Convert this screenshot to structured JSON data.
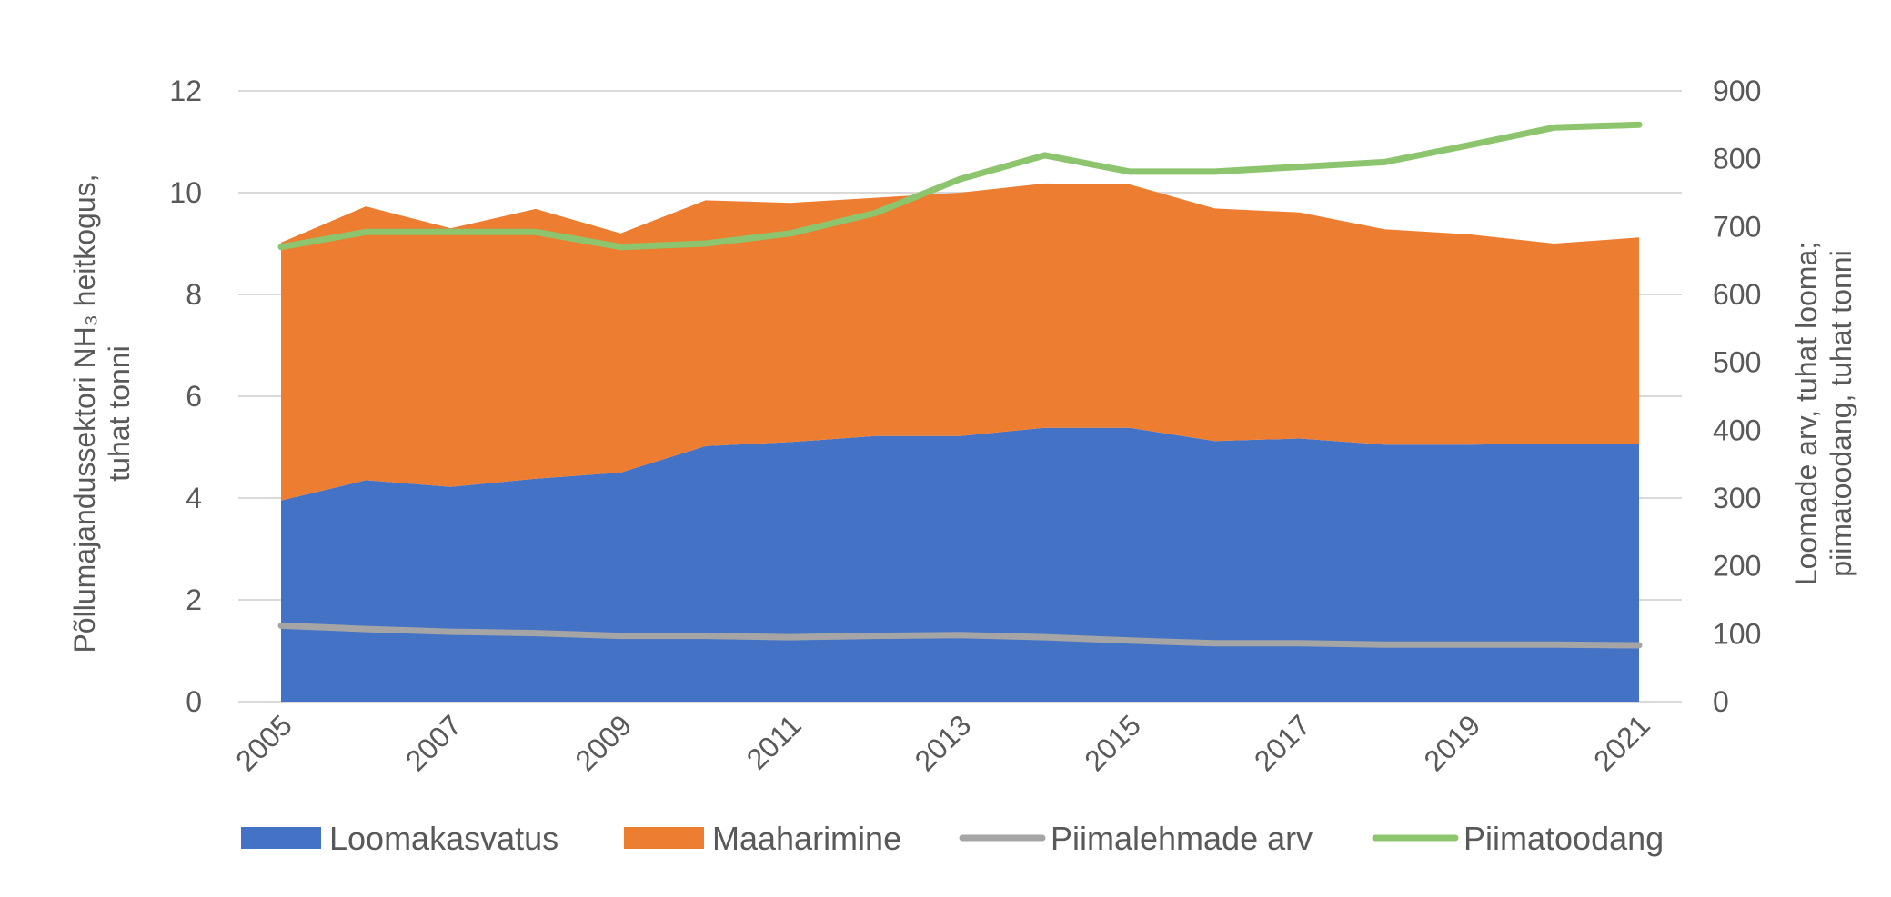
{
  "chart_data": {
    "type": "area",
    "x": [
      2005,
      2006,
      2007,
      2008,
      2009,
      2010,
      2011,
      2012,
      2013,
      2014,
      2015,
      2016,
      2017,
      2018,
      2019,
      2020,
      2021
    ],
    "x_tick_labels": [
      "2005",
      "2007",
      "2009",
      "2011",
      "2013",
      "2015",
      "2017",
      "2019",
      "2021"
    ],
    "ylabel_left": "Põllumajandussektori NH₃ heitkogus, tuhat tonni",
    "ylabel_right": "Loomade arv, tuhat looma; piimatoodang, tuhat tonni",
    "ylim_left": [
      0,
      12
    ],
    "ylim_right": [
      0,
      900
    ],
    "y_ticks_left": [
      0,
      2,
      4,
      6,
      8,
      10,
      12
    ],
    "y_ticks_right": [
      0,
      100,
      200,
      300,
      400,
      500,
      600,
      700,
      800,
      900
    ],
    "grid": true,
    "legend_position": "bottom",
    "stacked": true,
    "series": [
      {
        "name": "Loomakasvatus",
        "type": "area",
        "axis": "left",
        "color": "#4472C4",
        "values": [
          3.95,
          4.35,
          4.22,
          4.38,
          4.5,
          5.02,
          5.1,
          5.22,
          5.22,
          5.38,
          5.38,
          5.12,
          5.17,
          5.05,
          5.05,
          5.07,
          5.07
        ]
      },
      {
        "name": "Maaharimine",
        "type": "area",
        "axis": "left",
        "color": "#ED7D31",
        "values": [
          5.07,
          5.38,
          5.08,
          5.3,
          4.7,
          4.83,
          4.7,
          4.68,
          4.78,
          4.8,
          4.78,
          4.57,
          4.44,
          4.23,
          4.13,
          3.93,
          4.05
        ]
      },
      {
        "name": "Piimalehmade arv",
        "type": "line",
        "axis": "right",
        "color": "#A5A5A5",
        "values": [
          112,
          107,
          103,
          101,
          97,
          97,
          95,
          97,
          98,
          95,
          90,
          86,
          86,
          84,
          84,
          84,
          83
        ]
      },
      {
        "name": "Piimatoodang",
        "type": "line",
        "axis": "right",
        "color": "#8CC56E",
        "values": [
          670,
          692,
          692,
          692,
          670,
          675,
          690,
          720,
          770,
          805,
          781,
          781,
          788,
          795,
          820,
          846,
          850
        ]
      }
    ]
  }
}
